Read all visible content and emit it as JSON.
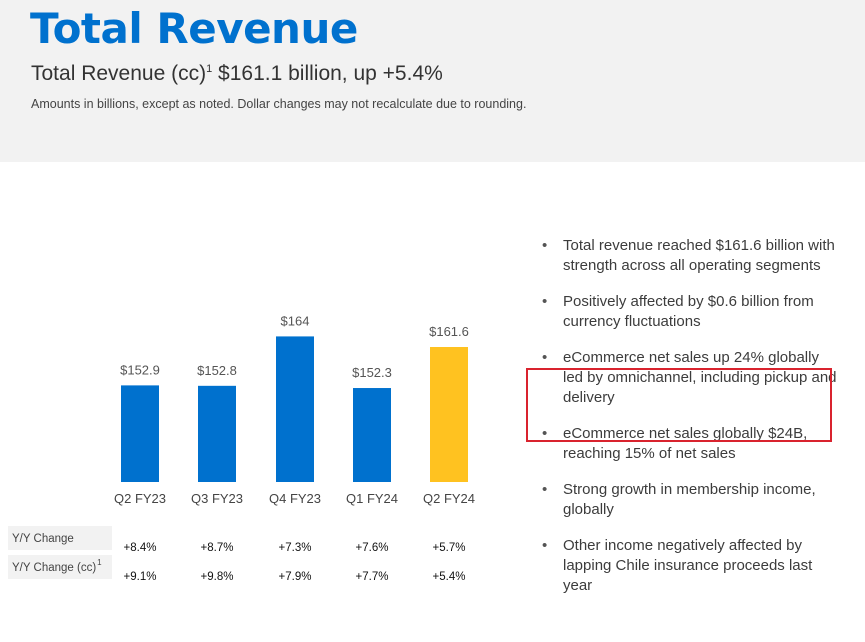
{
  "header": {
    "title": "Total Revenue",
    "subtitle_pre": "Total Revenue (cc)",
    "subtitle_sup": "1",
    "subtitle_post": " $161.1 billion, up +5.4%",
    "note": "Amounts in billions, except as noted.  Dollar changes may not recalculate due to rounding."
  },
  "chart_data": {
    "type": "bar",
    "title": "Total Revenue",
    "categories": [
      "Q2 FY23",
      "Q3 FY23",
      "Q4 FY23",
      "Q1 FY24",
      "Q2 FY24"
    ],
    "values": [
      152.9,
      152.8,
      164,
      152.3,
      161.6
    ],
    "value_labels": [
      "$152.9",
      "$152.8",
      "$164",
      "$152.3",
      "$161.6"
    ],
    "colors": [
      "#0071ce",
      "#0071ce",
      "#0071ce",
      "#0071ce",
      "#ffc220"
    ],
    "xlabel": "",
    "ylabel": "",
    "ylim": [
      131,
      165
    ],
    "grid": false,
    "table": {
      "rows": [
        {
          "label": "Y/Y Change",
          "label_sup": "",
          "values": [
            "+8.4%",
            "+8.7%",
            "+7.3%",
            "+7.6%",
            "+5.7%"
          ]
        },
        {
          "label": "Y/Y Change (cc)",
          "label_sup": "1",
          "values": [
            "+9.1%",
            "+9.8%",
            "+7.9%",
            "+7.7%",
            "+5.4%"
          ]
        }
      ]
    }
  },
  "bullets": [
    "Total revenue reached $161.6 billion with strength across all operating segments",
    "Positively affected by $0.6 billion from currency fluctuations",
    "eCommerce net sales up 24% globally led by omnichannel, including pickup and delivery",
    "eCommerce net sales globally $24B, reaching 15% of net sales",
    "Strong growth in membership income, globally",
    "Other income negatively affected by lapping Chile insurance proceeds last year"
  ],
  "bullet_marker": "•",
  "highlight": {
    "bullet_index": 2,
    "color": "#d9232e"
  }
}
